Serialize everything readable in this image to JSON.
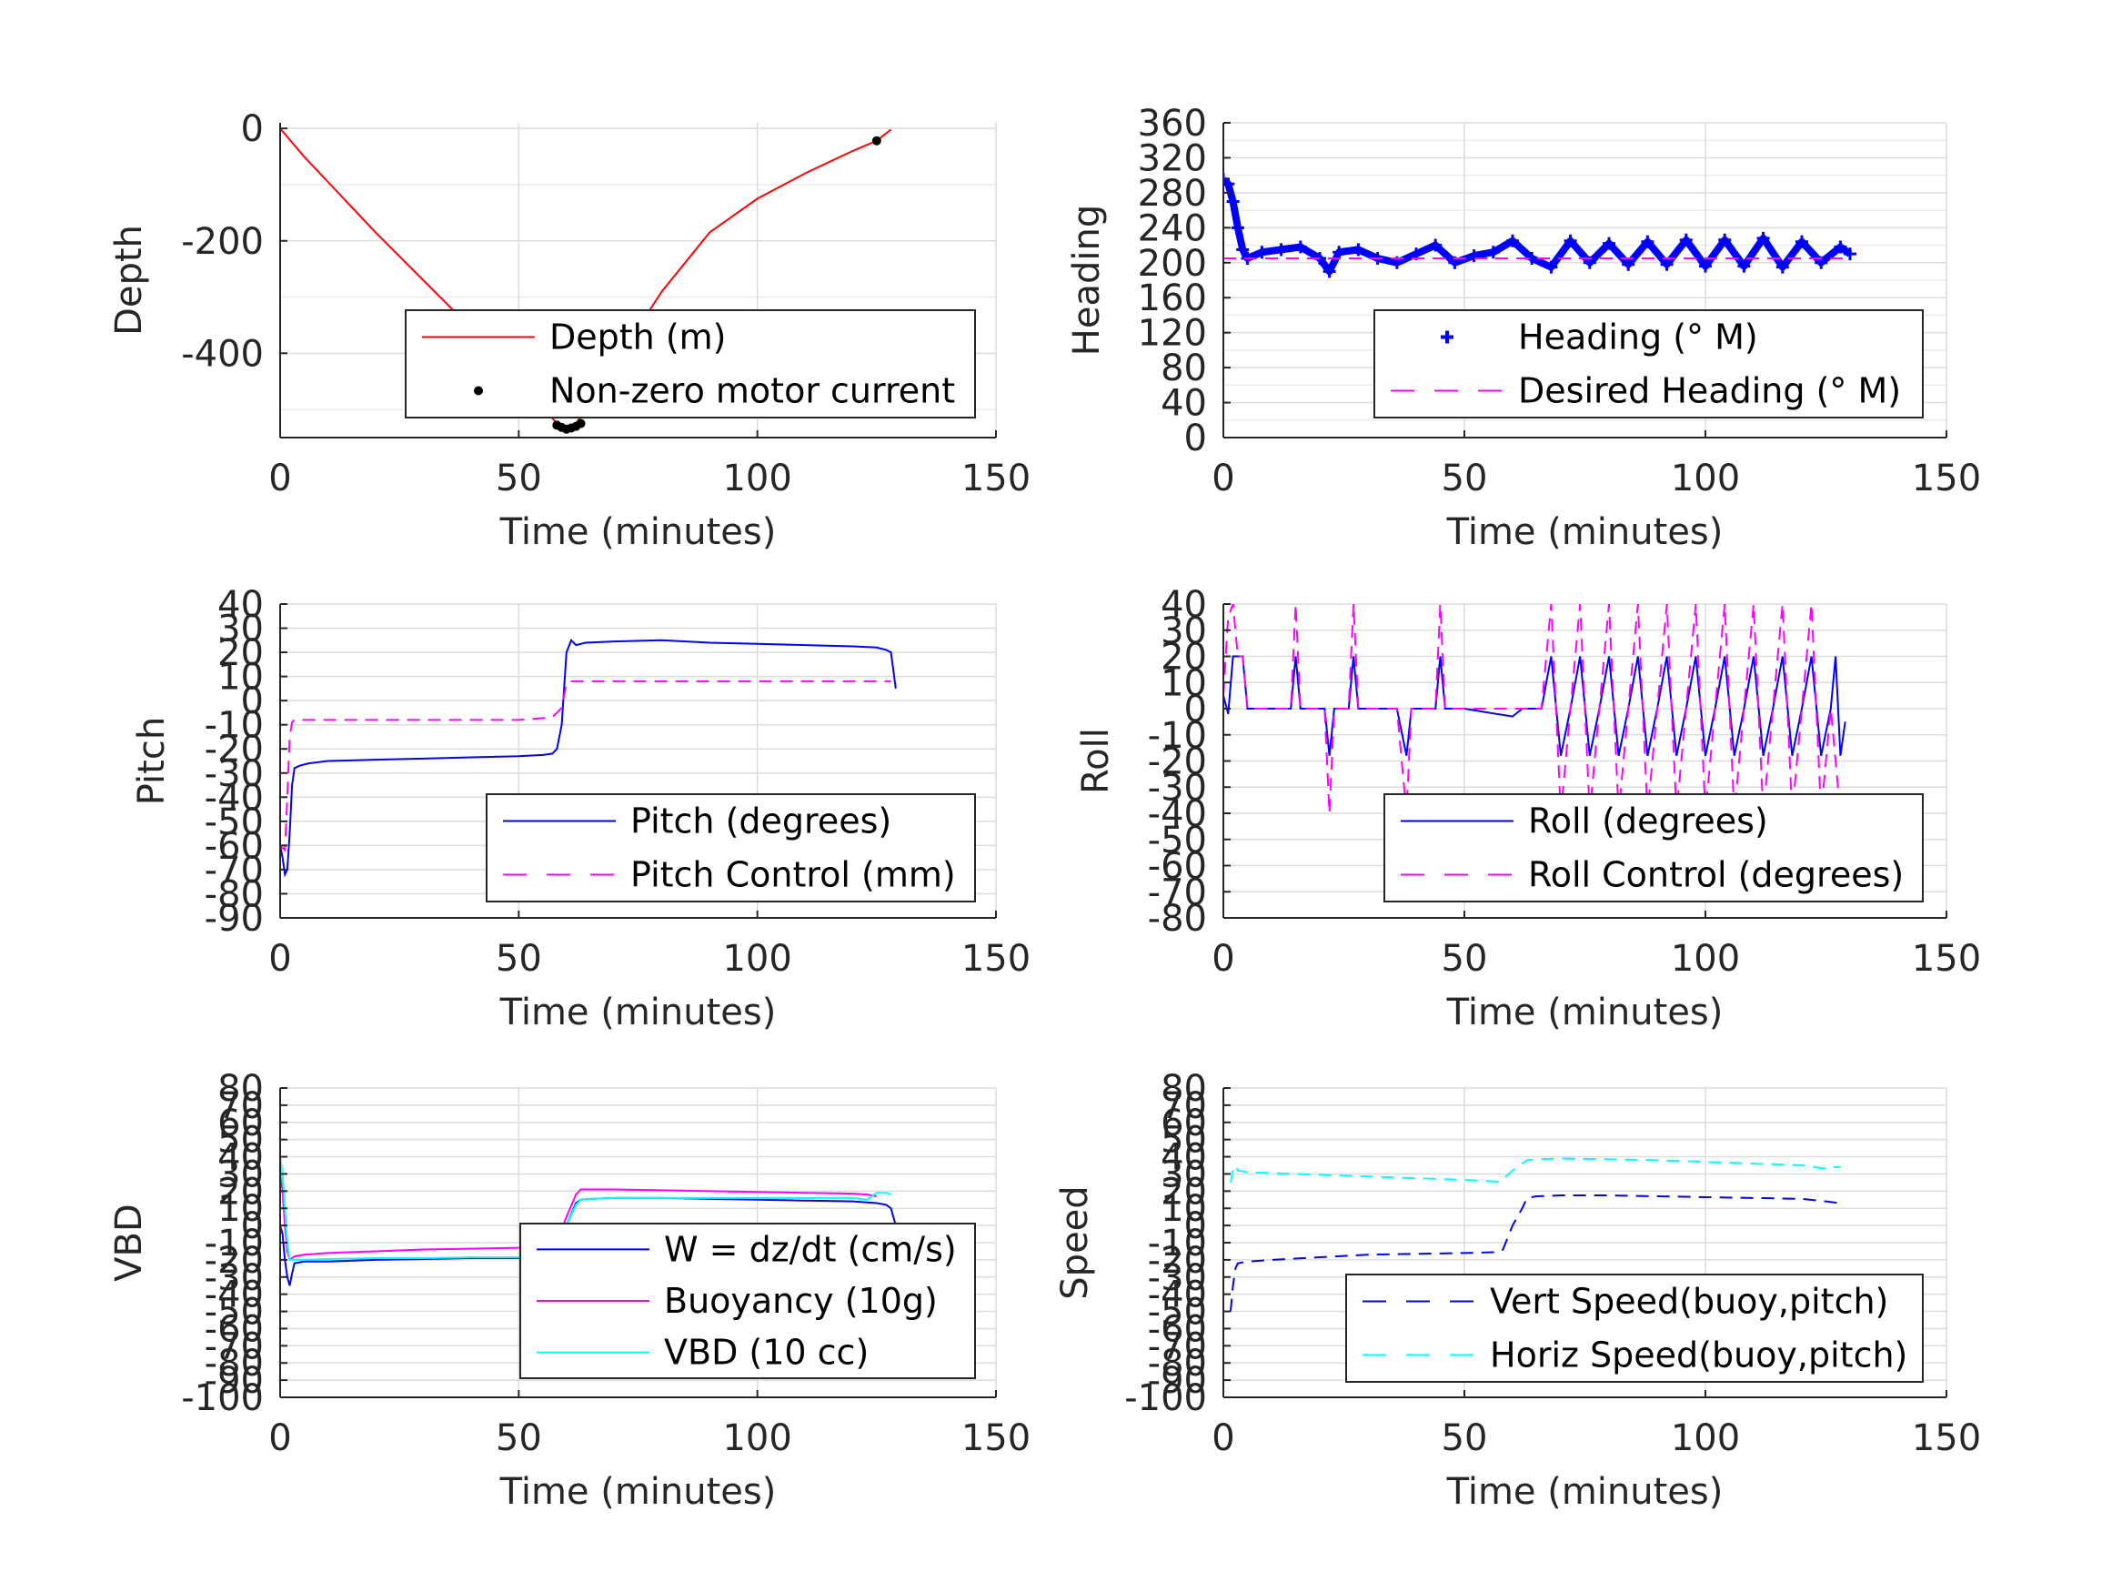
{
  "chart_data": [
    {
      "type": "line",
      "xlabel": "Time (minutes)",
      "ylabel": "Depth",
      "xlim": [
        0,
        150
      ],
      "ylim": [
        -550,
        10
      ],
      "xticks": [
        0,
        50,
        100,
        150
      ],
      "xtick_labels": [
        "0",
        "50",
        "100",
        "150"
      ],
      "yticks": [
        0,
        -200,
        -400
      ],
      "ytick_labels": [
        "0",
        "-200",
        "-400"
      ],
      "yminor": [
        -100,
        -300,
        -500
      ],
      "grid": true,
      "legend_position": "bottom-right",
      "series": [
        {
          "name": "Depth (m)",
          "style": "solid",
          "color": "#ff0000",
          "x": [
            0,
            1,
            3,
            5,
            10,
            20,
            30,
            40,
            50,
            55,
            58,
            60,
            62,
            64,
            70,
            80,
            90,
            100,
            110,
            120,
            125,
            128
          ],
          "y": [
            0,
            -10,
            -30,
            -50,
            -95,
            -185,
            -270,
            -355,
            -445,
            -495,
            -525,
            -535,
            -525,
            -500,
            -420,
            -290,
            -185,
            -125,
            -80,
            -40,
            -22,
            -2
          ]
        },
        {
          "name": "Non-zero motor current",
          "style": "marker",
          "color": "#000000",
          "x": [
            58,
            59,
            60,
            61,
            62,
            63,
            125
          ],
          "y": [
            -528,
            -532,
            -535,
            -533,
            -530,
            -525,
            -22
          ]
        }
      ]
    },
    {
      "type": "line",
      "xlabel": "Time (minutes)",
      "ylabel": "Heading",
      "xlim": [
        0,
        150
      ],
      "ylim": [
        0,
        360
      ],
      "xticks": [
        0,
        50,
        100,
        150
      ],
      "xtick_labels": [
        "0",
        "50",
        "100",
        "150"
      ],
      "yticks": [
        0,
        40,
        80,
        120,
        160,
        200,
        240,
        280,
        320,
        360
      ],
      "ytick_labels": [
        "0",
        "40",
        "80",
        "120",
        "160",
        "200",
        "240",
        "280",
        "320",
        "360"
      ],
      "yminor": [
        20,
        60,
        100,
        140,
        180,
        220,
        260,
        300,
        340
      ],
      "grid": true,
      "legend_position": "bottom-right",
      "series": [
        {
          "name": "Heading (° M)",
          "style": "plus",
          "color": "#0000ff",
          "x": [
            0,
            1,
            2,
            3,
            4,
            5,
            8,
            12,
            16,
            20,
            22,
            24,
            28,
            32,
            36,
            40,
            44,
            48,
            52,
            56,
            60,
            64,
            68,
            72,
            76,
            80,
            84,
            88,
            92,
            96,
            100,
            104,
            108,
            112,
            116,
            120,
            124,
            128,
            130
          ],
          "y": [
            295,
            290,
            270,
            240,
            215,
            205,
            212,
            215,
            218,
            205,
            190,
            212,
            215,
            205,
            200,
            210,
            220,
            200,
            208,
            212,
            225,
            205,
            195,
            225,
            200,
            222,
            198,
            224,
            198,
            226,
            196,
            226,
            196,
            228,
            195,
            224,
            200,
            218,
            210
          ]
        },
        {
          "name": "Desired Heading (° M)",
          "style": "dashed",
          "color": "#ff00ff",
          "x": [
            0,
            3,
            130
          ],
          "y": [
            205,
            205,
            205
          ]
        }
      ]
    },
    {
      "type": "line",
      "xlabel": "Time (minutes)",
      "ylabel": "Pitch",
      "xlim": [
        0,
        150
      ],
      "ylim": [
        -90,
        40
      ],
      "xticks": [
        0,
        50,
        100,
        150
      ],
      "xtick_labels": [
        "0",
        "50",
        "100",
        "150"
      ],
      "yticks": [
        40,
        30,
        20,
        10,
        0,
        -10,
        -20,
        -30,
        -40,
        -50,
        -60,
        -70,
        -80,
        -90
      ],
      "ytick_labels": [
        "40",
        "30",
        "20",
        "10",
        "0",
        "-10",
        "-20",
        "-30",
        "-40",
        "-50",
        "-60",
        "-70",
        "-80",
        "-90"
      ],
      "yminor": [],
      "grid": true,
      "legend_position": "bottom-right",
      "series": [
        {
          "name": "Pitch (degrees)",
          "style": "solid",
          "color": "#0000ff",
          "x": [
            0,
            0.5,
            1,
            1.5,
            2,
            2.5,
            3,
            4,
            6,
            10,
            20,
            30,
            40,
            50,
            55,
            57,
            58,
            59,
            60,
            61,
            62,
            64,
            70,
            80,
            90,
            100,
            110,
            120,
            125,
            127,
            128,
            129
          ],
          "y": [
            -60,
            -65,
            -72,
            -70,
            -55,
            -35,
            -28,
            -27,
            -26,
            -25,
            -24.5,
            -24,
            -23.5,
            -23,
            -22.5,
            -22,
            -20,
            -10,
            20,
            25,
            23,
            24,
            24.5,
            25,
            24,
            23.5,
            23,
            22.5,
            22,
            21,
            20,
            5
          ]
        },
        {
          "name": "Pitch Control (mm)",
          "style": "dashed",
          "color": "#ff00ff",
          "x": [
            0,
            1,
            1.5,
            2,
            2.5,
            3,
            10,
            30,
            50,
            57,
            59,
            60,
            61,
            70,
            90,
            100,
            110,
            125,
            128
          ],
          "y": [
            -60,
            -62,
            -40,
            -15,
            -9,
            -8,
            -8,
            -8,
            -8,
            -7,
            -3,
            7,
            8,
            8,
            8,
            8,
            8,
            8,
            8
          ]
        }
      ]
    },
    {
      "type": "line",
      "xlabel": "Time (minutes)",
      "ylabel": "Roll",
      "xlim": [
        0,
        150
      ],
      "ylim": [
        -80,
        40
      ],
      "xticks": [
        0,
        50,
        100,
        150
      ],
      "xtick_labels": [
        "0",
        "50",
        "100",
        "150"
      ],
      "yticks": [
        40,
        30,
        20,
        10,
        0,
        -10,
        -20,
        -30,
        -40,
        -50,
        -60,
        -70,
        -80
      ],
      "ytick_labels": [
        "40",
        "30",
        "20",
        "10",
        "0",
        "-10",
        "-20",
        "-30",
        "-40",
        "-50",
        "-60",
        "-70",
        "-80"
      ],
      "yminor": [],
      "grid": true,
      "legend_position": "bottom-right",
      "series": [
        {
          "name": "Roll (degrees)",
          "style": "solid",
          "color": "#0000ff",
          "x": [
            0,
            1,
            2,
            2.5,
            4,
            5,
            10,
            14,
            15,
            16,
            20,
            21,
            22,
            23,
            26,
            27,
            28,
            36,
            38,
            39,
            44,
            45,
            46,
            50,
            60,
            62,
            66,
            68,
            70,
            72,
            74,
            76,
            78,
            80,
            82,
            84,
            86,
            88,
            90,
            92,
            94,
            96,
            98,
            100,
            102,
            104,
            106,
            108,
            110,
            112,
            114,
            116,
            118,
            120,
            122,
            124,
            126,
            127,
            128,
            129
          ],
          "y": [
            5,
            -2,
            20,
            20,
            20,
            0,
            0,
            0,
            20,
            0,
            0,
            0,
            -18,
            0,
            0,
            20,
            0,
            0,
            -18,
            0,
            0,
            20,
            0,
            0,
            -3,
            0,
            0,
            20,
            -18,
            0,
            20,
            -18,
            0,
            20,
            -18,
            0,
            20,
            -18,
            0,
            20,
            -18,
            0,
            20,
            -18,
            0,
            20,
            -18,
            0,
            20,
            -18,
            0,
            20,
            -18,
            0,
            20,
            -18,
            0,
            20,
            -18,
            -5
          ]
        },
        {
          "name": "Roll Control (degrees)",
          "style": "dashed",
          "color": "#ff00ff",
          "x": [
            0,
            1,
            2,
            3,
            4,
            5,
            14,
            15,
            16,
            20,
            21,
            22,
            23,
            26,
            27,
            28,
            36,
            38,
            39,
            44,
            45,
            46,
            50,
            60,
            66,
            68,
            70,
            72,
            74,
            76,
            78,
            80,
            82,
            84,
            86,
            88,
            90,
            92,
            94,
            96,
            98,
            100,
            102,
            104,
            106,
            108,
            110,
            112,
            114,
            116,
            118,
            120,
            122,
            124,
            126,
            128
          ],
          "y": [
            5,
            35,
            40,
            20,
            20,
            0,
            0,
            40,
            0,
            0,
            0,
            -40,
            0,
            0,
            40,
            0,
            0,
            -40,
            0,
            0,
            40,
            0,
            0,
            0,
            0,
            40,
            -40,
            0,
            40,
            -40,
            0,
            40,
            -40,
            0,
            40,
            -40,
            0,
            40,
            -40,
            0,
            40,
            -40,
            0,
            40,
            -40,
            0,
            40,
            -40,
            0,
            40,
            -40,
            0,
            40,
            -40,
            0,
            -40
          ]
        }
      ]
    },
    {
      "type": "line",
      "xlabel": "Time (minutes)",
      "ylabel": "VBD",
      "xlim": [
        0,
        150
      ],
      "ylim": [
        -100,
        80
      ],
      "xticks": [
        0,
        50,
        100,
        150
      ],
      "xtick_labels": [
        "0",
        "50",
        "100",
        "150"
      ],
      "yticks": [
        80,
        70,
        60,
        50,
        40,
        30,
        20,
        10,
        0,
        -10,
        -20,
        -30,
        -40,
        -50,
        -60,
        -70,
        -80,
        -90,
        -100
      ],
      "ytick_labels": [
        "80",
        "70",
        "60",
        "50",
        "40",
        "30",
        "20",
        "10",
        "0",
        "-10",
        "-20",
        "-30",
        "-40",
        "-50",
        "-60",
        "-70",
        "-80",
        "-90",
        "-100"
      ],
      "yminor": [],
      "grid": true,
      "legend_position": "bottom-right",
      "series": [
        {
          "name": "W = dz/dt (cm/s)",
          "style": "solid",
          "color": "#0000ff",
          "x": [
            0,
            0.5,
            1,
            1.5,
            2,
            2.5,
            3,
            5,
            10,
            20,
            30,
            40,
            50,
            55,
            57,
            58,
            60,
            62,
            63,
            65,
            70,
            80,
            90,
            100,
            110,
            120,
            125,
            127,
            128,
            129
          ],
          "y": [
            0,
            -5,
            -20,
            -30,
            -35,
            -28,
            -22,
            -21,
            -21,
            -20,
            -19.5,
            -19,
            -19,
            -18.5,
            -18,
            -15,
            0,
            13,
            15,
            15.5,
            16,
            16,
            15.5,
            15,
            14.5,
            14,
            13,
            12,
            10,
            0
          ]
        },
        {
          "name": "Buoyancy (10g)",
          "style": "solid",
          "color": "#ff00ff",
          "x": [
            0,
            0.5,
            1,
            1.5,
            2,
            2.5,
            3,
            5,
            10,
            20,
            30,
            40,
            50,
            57,
            58,
            60,
            62,
            63,
            65,
            70,
            80,
            90,
            100,
            110,
            120,
            123,
            125
          ],
          "y": [
            30,
            20,
            0,
            -15,
            -20,
            -19,
            -18,
            -17,
            -16,
            -15,
            -14,
            -13.5,
            -13,
            -12,
            -10,
            5,
            18,
            21,
            21,
            21,
            20.5,
            20,
            19.5,
            19,
            18.5,
            18,
            17
          ]
        },
        {
          "name": "VBD (10 cc)",
          "style": "solid",
          "color": "#00ffff",
          "x": [
            0,
            0.5,
            1,
            1.5,
            2,
            2.5,
            3,
            5,
            10,
            20,
            30,
            40,
            50,
            57,
            58,
            60,
            62,
            63,
            65,
            70,
            80,
            90,
            100,
            110,
            120,
            123,
            125,
            127,
            128
          ],
          "y": [
            40,
            30,
            10,
            -10,
            -20,
            -20,
            -20,
            -20,
            -19.5,
            -19,
            -19,
            -18.5,
            -18.5,
            -18,
            -15,
            0,
            12,
            15,
            15.5,
            16,
            16,
            16,
            16,
            16,
            16,
            15,
            19,
            19,
            18
          ]
        }
      ]
    },
    {
      "type": "line",
      "xlabel": "Time (minutes)",
      "ylabel": "Speed",
      "xlim": [
        0,
        150
      ],
      "ylim": [
        -100,
        80
      ],
      "xticks": [
        0,
        50,
        100,
        150
      ],
      "xtick_labels": [
        "0",
        "50",
        "100",
        "150"
      ],
      "yticks": [
        80,
        70,
        60,
        50,
        40,
        30,
        20,
        10,
        0,
        -10,
        -20,
        -30,
        -40,
        -50,
        -60,
        -70,
        -80,
        -90,
        -100
      ],
      "ytick_labels": [
        "80",
        "70",
        "60",
        "50",
        "40",
        "30",
        "20",
        "10",
        "0",
        "-10",
        "-20",
        "-30",
        "-40",
        "-50",
        "-60",
        "-70",
        "-80",
        "-90",
        "-100"
      ],
      "yminor": [],
      "grid": true,
      "legend_position": "bottom-right",
      "series": [
        {
          "name": "Vert Speed(buoy,pitch)",
          "style": "dashed",
          "color": "#0000ff",
          "x": [
            1.5,
            2,
            2.5,
            3,
            5,
            10,
            20,
            30,
            40,
            50,
            57,
            58,
            60,
            62,
            63,
            65,
            70,
            80,
            90,
            100,
            110,
            120,
            125,
            128
          ],
          "y": [
            -50,
            -35,
            -25,
            -22,
            -21,
            -20,
            -18.5,
            -17,
            -16.5,
            -16,
            -15.5,
            -14,
            0,
            10,
            16,
            17,
            17.5,
            17.5,
            17,
            16.5,
            16,
            15.5,
            14,
            13
          ]
        },
        {
          "name": "Horiz Speed(buoy,pitch)",
          "style": "dashed",
          "color": "#00ffff",
          "x": [
            1.5,
            2,
            2.5,
            3,
            5,
            10,
            20,
            30,
            40,
            50,
            57,
            58,
            60,
            62,
            63,
            65,
            70,
            80,
            90,
            100,
            110,
            120,
            125,
            127,
            128
          ],
          "y": [
            25,
            32,
            35,
            32,
            31,
            30.5,
            29.5,
            28.5,
            27.5,
            26.5,
            25.5,
            27,
            32,
            36,
            38,
            38.5,
            39,
            38.5,
            38,
            37,
            36,
            35,
            33,
            34,
            34
          ]
        }
      ]
    }
  ]
}
